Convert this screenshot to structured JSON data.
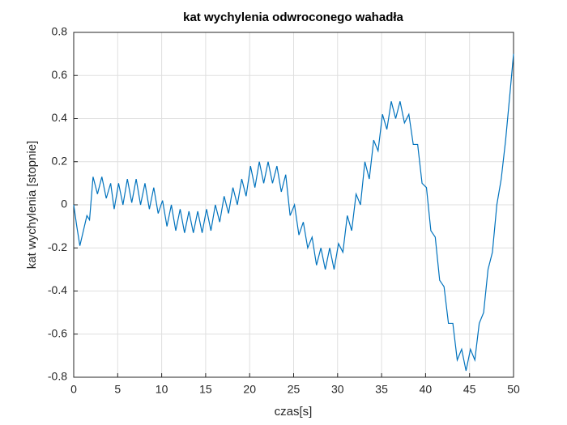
{
  "chart_data": {
    "type": "line",
    "title": "kat wychylenia odwroconego wahadła",
    "x_label": "czas[s]",
    "y_label": "kat wychylenia [stopnie]",
    "x": [
      0,
      0.35,
      0.7,
      1.1,
      1.5,
      1.8,
      2.2,
      2.7,
      3.2,
      3.7,
      4.2,
      4.6,
      5.1,
      5.6,
      6.1,
      6.6,
      7.1,
      7.6,
      8.1,
      8.6,
      9.1,
      9.6,
      10.1,
      10.6,
      11.1,
      11.6,
      12.1,
      12.6,
      13.1,
      13.6,
      14.1,
      14.6,
      15.1,
      15.6,
      16.1,
      16.6,
      17.1,
      17.6,
      18.1,
      18.6,
      19.1,
      19.6,
      20.1,
      20.6,
      21.1,
      21.6,
      22.1,
      22.6,
      23.1,
      23.6,
      24.1,
      24.6,
      25.1,
      25.6,
      26.1,
      26.6,
      27.1,
      27.6,
      28.1,
      28.6,
      29.1,
      29.6,
      30.1,
      30.6,
      31.1,
      31.6,
      32.1,
      32.6,
      33.1,
      33.6,
      34.1,
      34.6,
      35.1,
      35.6,
      36.1,
      36.6,
      37.1,
      37.6,
      38.1,
      38.6,
      39.1,
      39.6,
      40.1,
      40.6,
      41.1,
      41.6,
      42.1,
      42.6,
      43.1,
      43.6,
      44.1,
      44.6,
      45.1,
      45.6,
      46.1,
      46.6,
      47.1,
      47.6,
      48.1,
      48.6,
      49.1,
      49.6,
      50
    ],
    "series": [
      {
        "name": "kat",
        "color": "#0072bd",
        "values": [
          0,
          -0.1,
          -0.19,
          -0.12,
          -0.05,
          -0.07,
          0.13,
          0.05,
          0.13,
          0.03,
          0.1,
          -0.02,
          0.1,
          0.0,
          0.12,
          0.01,
          0.12,
          0.0,
          0.1,
          -0.02,
          0.08,
          -0.04,
          0.02,
          -0.1,
          0.0,
          -0.12,
          -0.02,
          -0.13,
          -0.03,
          -0.13,
          -0.03,
          -0.13,
          -0.02,
          -0.12,
          0.0,
          -0.08,
          0.04,
          -0.04,
          0.08,
          0.0,
          0.12,
          0.04,
          0.18,
          0.08,
          0.2,
          0.1,
          0.2,
          0.1,
          0.18,
          0.06,
          0.14,
          -0.05,
          0.0,
          -0.14,
          -0.08,
          -0.2,
          -0.15,
          -0.28,
          -0.2,
          -0.3,
          -0.2,
          -0.3,
          -0.18,
          -0.22,
          -0.05,
          -0.12,
          0.05,
          0.0,
          0.2,
          0.12,
          0.3,
          0.25,
          0.42,
          0.35,
          0.48,
          0.4,
          0.48,
          0.38,
          0.42,
          0.28,
          0.28,
          0.1,
          0.08,
          -0.12,
          -0.15,
          -0.35,
          -0.38,
          -0.55,
          -0.55,
          -0.72,
          -0.67,
          -0.77,
          -0.67,
          -0.72,
          -0.55,
          -0.5,
          -0.3,
          -0.22,
          0.0,
          0.12,
          0.3,
          0.52,
          0.7
        ]
      }
    ],
    "xlim": [
      0,
      50
    ],
    "xticks": [
      0,
      5,
      10,
      15,
      20,
      25,
      30,
      35,
      40,
      45,
      50
    ],
    "ylim": [
      -0.8,
      0.8
    ],
    "yticks": [
      -0.8,
      -0.6,
      -0.4,
      -0.2,
      0,
      0.2,
      0.4,
      0.6,
      0.8
    ],
    "grid": true
  }
}
